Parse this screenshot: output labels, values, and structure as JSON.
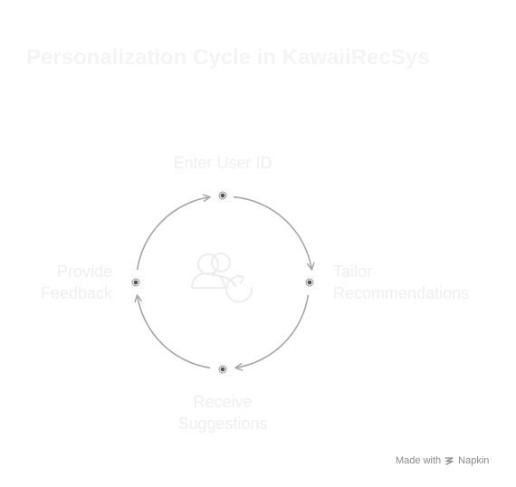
{
  "title": "Personalization Cycle in KawaiiRecSys",
  "steps": [
    {
      "label": "Enter User ID"
    },
    {
      "label": "Tailor\nRecommendations"
    },
    {
      "label": "Receive\nSuggestions"
    },
    {
      "label": "Provide\nFeedback"
    }
  ],
  "center_icon": "users-refresh-icon",
  "colors": {
    "arc": "#a6a6a6",
    "node": "#555555",
    "icon": "#ededed",
    "label": "#efefef"
  },
  "footer": {
    "made_with": "Made with",
    "brand": "Napkin",
    "brand_icon": "napkin-logo-icon"
  }
}
